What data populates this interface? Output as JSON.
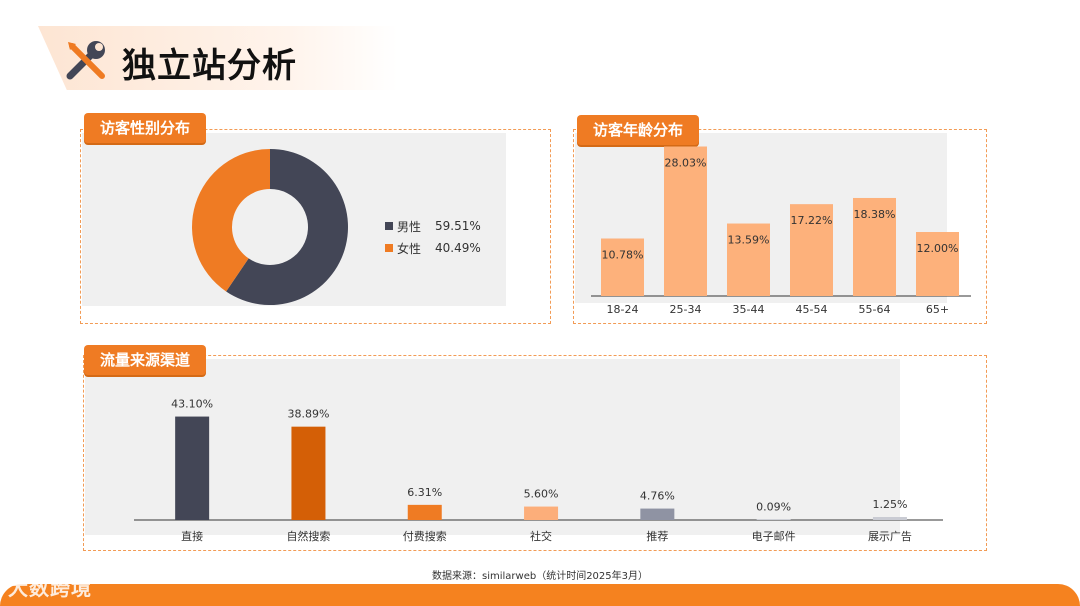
{
  "header": {
    "title": "独立站分析",
    "icon": "tools-icon"
  },
  "gender_panel": {
    "title": "访客性别分布"
  },
  "age_panel": {
    "title": "访客年龄分布"
  },
  "traffic_panel": {
    "title": "流量来源渠道"
  },
  "footer": {
    "source": "数据来源：similarweb（统计时间2025年3月）",
    "brand": "大数跨境"
  },
  "colors": {
    "accent": "#ef7b23",
    "dark": "#434656",
    "age_bar": "#fdb17b",
    "dark_orange": "#d45f06",
    "light_orange": "#fcae7a",
    "gray_blue": "#8f93a3",
    "light_gray": "#c9cbd3"
  },
  "chart_data": [
    {
      "type": "pie",
      "title": "访客性别分布",
      "categories": [
        "男性",
        "女性"
      ],
      "values": [
        59.51,
        40.49
      ],
      "labels": [
        "59.51%",
        "40.49%"
      ],
      "colors": [
        "#434656",
        "#ef7b23"
      ],
      "legend": "right"
    },
    {
      "type": "bar",
      "title": "访客年龄分布",
      "categories": [
        "18-24",
        "25-34",
        "35-44",
        "45-54",
        "55-64",
        "65+"
      ],
      "values": [
        10.78,
        28.03,
        13.59,
        17.22,
        18.38,
        12.0
      ],
      "labels": [
        "10.78%",
        "28.03%",
        "13.59%",
        "17.22%",
        "18.38%",
        "12.00%"
      ],
      "color": "#fdb17b",
      "ylim": [
        0,
        30
      ]
    },
    {
      "type": "bar",
      "title": "流量来源渠道",
      "categories": [
        "直接",
        "自然搜索",
        "付费搜索",
        "社交",
        "推荐",
        "电子邮件",
        "展示广告"
      ],
      "values": [
        43.1,
        38.89,
        6.31,
        5.6,
        4.76,
        0.09,
        1.25
      ],
      "labels": [
        "43.10%",
        "38.89%",
        "6.31%",
        "5.60%",
        "4.76%",
        "0.09%",
        "1.25%"
      ],
      "colors": [
        "#434656",
        "#d45f06",
        "#ef7b23",
        "#fcae7a",
        "#8f93a3",
        "#b0b3bf",
        "#c9cbd3"
      ],
      "ylim": [
        0,
        45
      ]
    }
  ]
}
